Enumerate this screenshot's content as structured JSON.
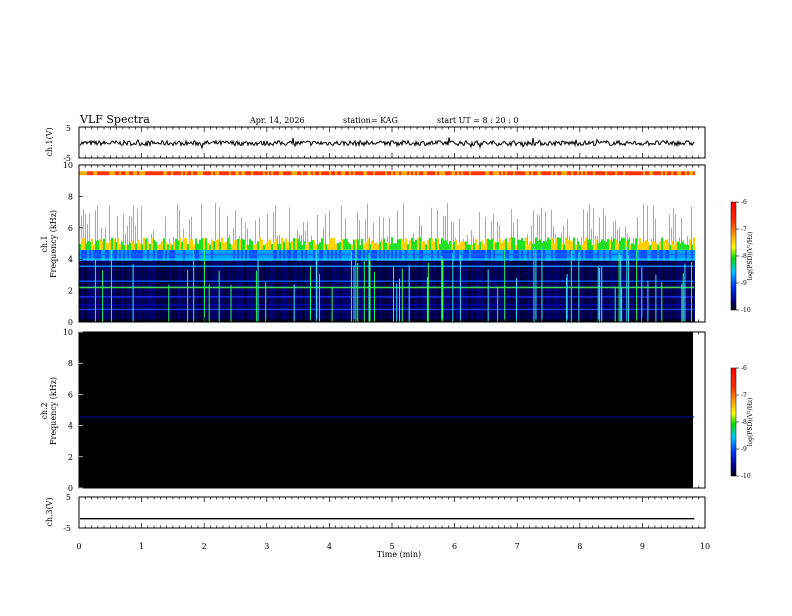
{
  "header": {
    "title": "VLF  Spectra",
    "date": "Apr. 14, 2026",
    "station": "station= KAG",
    "start": "start  UT =   8  : 20 : 0"
  },
  "chart_data": [
    {
      "type": "line",
      "name": "ch1-waveform",
      "ylabel": "ch.1(V)",
      "ylim": [
        -5,
        5
      ],
      "yticks": [
        "5",
        "-5"
      ],
      "x": [
        0,
        9.83
      ],
      "values_note": "noisy trace centered slightly below 0 V",
      "mean": -0.2
    },
    {
      "type": "heatmap",
      "name": "ch1-spectrogram",
      "ylabel_line1": "ch.1",
      "ylabel_line2": "Frequency  (kHz)",
      "ylim": [
        0,
        10
      ],
      "yticks": [
        "0",
        "2",
        "4",
        "6",
        "8",
        "10"
      ],
      "xlim": [
        0,
        10
      ],
      "x_data_end": 9.83,
      "bands": [
        {
          "from_khz": 0,
          "to_khz": 3.9,
          "level": "-9 to -10"
        },
        {
          "from_khz": 3.9,
          "to_khz": 4.6,
          "level": "-8 to -9"
        },
        {
          "from_khz": 4.6,
          "to_khz": 5.0,
          "level": "-7 to -8"
        },
        {
          "from_khz": 5.0,
          "to_khz": 7.5,
          "level": "-6 to -7 (sporadic bursts)"
        },
        {
          "from_khz": 9.3,
          "to_khz": 9.6,
          "level": "-6 to -8"
        }
      ],
      "colorbar": {
        "ticks": [
          "-6",
          "-7",
          "-8",
          "-9",
          "-10"
        ],
        "label": "log(PSD)(V²/Hz)",
        "colors": [
          "#ff0000",
          "#ff8800",
          "#ffff00",
          "#00e000",
          "#00c8ff",
          "#0000ff",
          "#000000"
        ]
      }
    },
    {
      "type": "heatmap",
      "name": "ch2-spectrogram",
      "ylabel_line1": "ch.2",
      "ylabel_line2": "Frequency  (kHz)",
      "ylim": [
        0,
        10
      ],
      "yticks": [
        "0",
        "2",
        "4",
        "6",
        "8",
        "10"
      ],
      "xlim": [
        0,
        10
      ],
      "x_data_end": 9.83,
      "bands": [
        {
          "from_khz": 0,
          "to_khz": 10,
          "level": "below -10"
        },
        {
          "from_khz": 4.5,
          "to_khz": 4.6,
          "level": "-10 (faint line)"
        }
      ],
      "colorbar": {
        "ticks": [
          "-6",
          "-7",
          "-8",
          "-9",
          "-10"
        ],
        "label": "log(PSD)(V²/Hz)",
        "colors": [
          "#ff0000",
          "#ff8800",
          "#ffff00",
          "#00e000",
          "#00c8ff",
          "#0000ff",
          "#000000"
        ]
      }
    },
    {
      "type": "line",
      "name": "ch3-waveform",
      "ylabel": "ch.3(V)",
      "ylim": [
        -5,
        5
      ],
      "yticks": [
        "5",
        "-5"
      ],
      "x": [
        0,
        9.83
      ],
      "mean": -2.0
    }
  ],
  "xaxis": {
    "label": "Time  (min)",
    "ticks": [
      "0",
      "1",
      "2",
      "3",
      "4",
      "5",
      "6",
      "7",
      "8",
      "9",
      "10"
    ],
    "range": [
      0,
      10
    ]
  }
}
